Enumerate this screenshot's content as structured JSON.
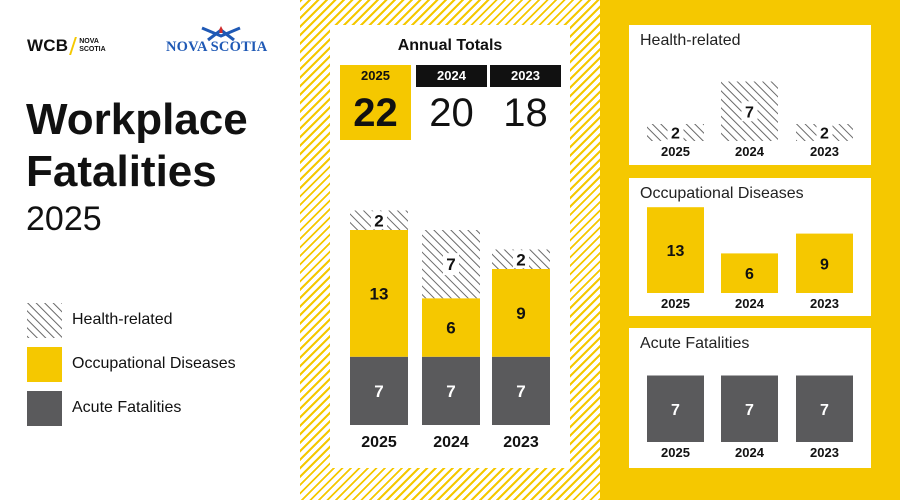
{
  "brand": {
    "wcb": "WCB",
    "wcb_sub": [
      "NOVA",
      "SCOTIA"
    ],
    "nsg": "NOVA SCOTIA"
  },
  "title": {
    "line1": "Workplace",
    "line2": "Fatalities",
    "year": "2025"
  },
  "colors": {
    "yellow": "#f5c800",
    "dark": "#5a5a5c",
    "hatch": "#6a6a6a",
    "black": "#111111"
  },
  "legend": [
    {
      "label": "Health-related",
      "key": "health"
    },
    {
      "label": "Occupational Diseases",
      "key": "occupational"
    },
    {
      "label": "Acute Fatalities",
      "key": "acute"
    }
  ],
  "annual_totals": {
    "title": "Annual Totals",
    "items": [
      {
        "year": "2025",
        "value": "22"
      },
      {
        "year": "2024",
        "value": "20"
      },
      {
        "year": "2023",
        "value": "18"
      }
    ]
  },
  "chart_data": [
    {
      "type": "bar",
      "stacked": true,
      "categories": [
        "2025",
        "2024",
        "2023"
      ],
      "series": [
        {
          "name": "Acute Fatalities",
          "values": [
            7,
            7,
            7
          ]
        },
        {
          "name": "Occupational Diseases",
          "values": [
            13,
            6,
            9
          ]
        },
        {
          "name": "Health-related",
          "values": [
            2,
            7,
            2
          ]
        }
      ]
    },
    {
      "type": "bar",
      "title": "Health-related",
      "categories": [
        "2025",
        "2024",
        "2023"
      ],
      "values": [
        2,
        7,
        2
      ]
    },
    {
      "type": "bar",
      "title": "Occupational Diseases",
      "categories": [
        "2025",
        "2024",
        "2023"
      ],
      "values": [
        13,
        6,
        9
      ]
    },
    {
      "type": "bar",
      "title": "Acute Fatalities",
      "categories": [
        "2025",
        "2024",
        "2023"
      ],
      "values": [
        7,
        7,
        7
      ]
    }
  ]
}
